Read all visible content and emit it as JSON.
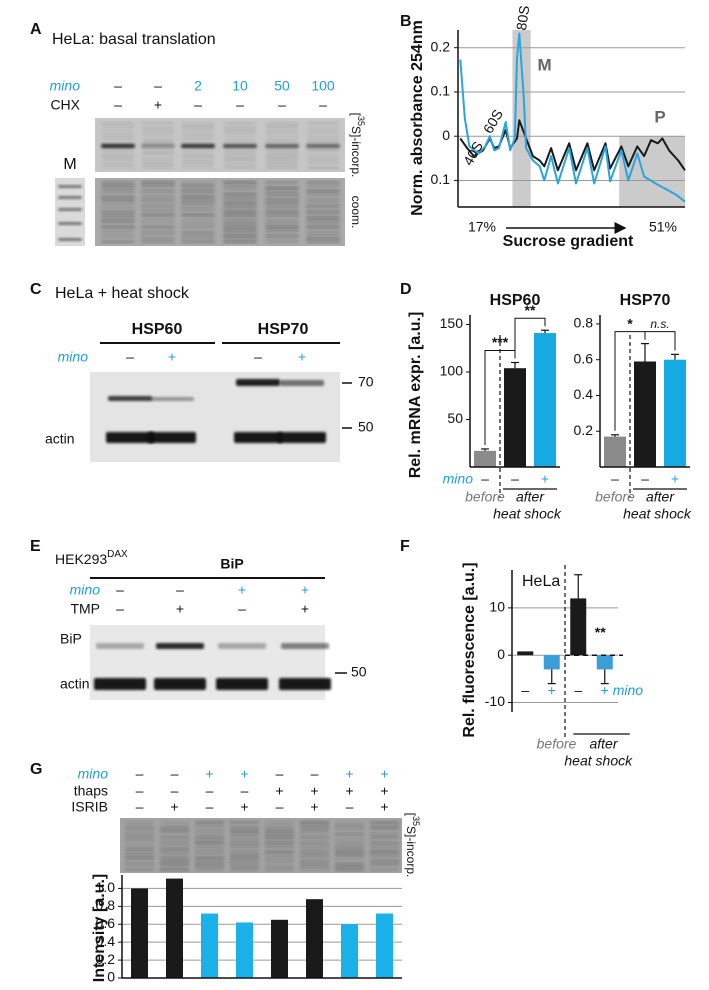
{
  "panels": {
    "A": {
      "label": "A",
      "title": "HeLa: basal translation",
      "rows": [
        {
          "name": "mino",
          "cells": [
            "–",
            "–",
            "2",
            "10",
            "50",
            "100"
          ]
        },
        {
          "name": "CHX",
          "cells": [
            "–",
            "+",
            "–",
            "–",
            "–",
            "–"
          ]
        }
      ],
      "incorp": [
        "[",
        "35",
        "S]-incorp."
      ],
      "stain": "coom.",
      "marker": "M"
    },
    "B": {
      "label": "B"
    },
    "C": {
      "label": "C",
      "title": "HeLa + heat shock",
      "headers": [
        "HSP60",
        "HSP70"
      ],
      "rows": [
        {
          "name": "mino",
          "cells": [
            "–",
            "+",
            "–",
            "+"
          ]
        }
      ],
      "size_markers": [
        "70",
        "50"
      ],
      "loading": "actin"
    },
    "D": {
      "label": "D"
    },
    "E": {
      "label": "E",
      "cell_line": [
        "HEK293",
        "DAX"
      ],
      "header": "BiP",
      "rows": [
        {
          "name": "mino",
          "cells": [
            "–",
            "–",
            "+",
            "+"
          ]
        },
        {
          "name": "TMP",
          "cells": [
            "–",
            "+",
            "–",
            "+"
          ]
        }
      ],
      "lanes": [
        "BiP",
        "actin"
      ],
      "size_marker": "50"
    },
    "F": {
      "label": "F"
    },
    "G": {
      "label": "G",
      "rows": [
        {
          "name": "mino",
          "cells": [
            "–",
            "–",
            "+",
            "+",
            "–",
            "–",
            "+",
            "+"
          ]
        },
        {
          "name": "thaps",
          "cells": [
            "–",
            "–",
            "–",
            "–",
            "+",
            "+",
            "+",
            "+"
          ]
        },
        {
          "name": "ISRIB",
          "cells": [
            "–",
            "+",
            "–",
            "+",
            "–",
            "+",
            "–",
            "+"
          ]
        }
      ],
      "incorp": [
        "[",
        "35",
        "S]-incorp."
      ]
    }
  },
  "chart_data": [
    {
      "type": "line",
      "y_label": "Norm. absorbance 254nm",
      "x_label": "Sucrose gradient",
      "xlim": [
        0,
        100
      ],
      "ylim": [
        -0.16,
        0.24
      ],
      "yticks": [
        0.2,
        0.1,
        0,
        {
          "value": -0.1,
          "label": "0.1"
        }
      ],
      "grid": true,
      "peak_labels": [
        "40S",
        "60S",
        "80S"
      ],
      "regions": [
        {
          "label": "M",
          "x": [
            24,
            32
          ]
        },
        {
          "label": "P",
          "x": [
            71,
            100
          ]
        }
      ],
      "gradient": [
        "17%",
        "51%"
      ],
      "series": [
        {
          "color": "#1a1a1a",
          "x": [
            1,
            4,
            7,
            11,
            14,
            16,
            18,
            21,
            23,
            26,
            27,
            30,
            33,
            36,
            38,
            41,
            44,
            49,
            52,
            57,
            60,
            65,
            67,
            72,
            75,
            79,
            82,
            85,
            88,
            90,
            93,
            97,
            100
          ],
          "values": [
            -0.005,
            -0.027,
            -0.045,
            -0.032,
            -0.005,
            -0.027,
            -0.023,
            0.014,
            -0.027,
            -0.005,
            0.036,
            -0.005,
            -0.045,
            -0.055,
            -0.068,
            -0.027,
            -0.077,
            -0.016,
            -0.077,
            -0.016,
            -0.077,
            -0.016,
            -0.073,
            -0.023,
            -0.068,
            -0.023,
            -0.045,
            -0.009,
            -0.016,
            -0.005,
            -0.032,
            -0.055,
            -0.077
          ]
        },
        {
          "color": "#2aa5dc",
          "x": [
            1,
            3,
            5,
            9,
            12,
            14,
            16,
            18,
            21,
            23,
            25,
            26,
            27,
            29,
            30,
            33,
            36,
            38,
            41,
            44,
            49,
            52,
            57,
            60,
            65,
            67,
            72,
            75,
            79,
            82,
            87,
            91,
            96,
            100
          ],
          "values": [
            0.173,
            0.041,
            -0.023,
            -0.039,
            -0.023,
            0,
            -0.032,
            -0.027,
            0.032,
            -0.032,
            -0.005,
            0.177,
            0.232,
            0.086,
            -0.027,
            -0.055,
            -0.068,
            -0.1,
            -0.045,
            -0.107,
            -0.027,
            -0.107,
            -0.027,
            -0.107,
            -0.023,
            -0.102,
            -0.032,
            -0.1,
            -0.039,
            -0.091,
            -0.107,
            -0.118,
            -0.132,
            -0.148
          ]
        }
      ]
    },
    {
      "type": "bar",
      "title": "HSP60",
      "y_label": "Rel. mRNA expr. [a.u.]",
      "x_row_label": "mino",
      "categories": [
        "–",
        "–",
        "+"
      ],
      "values": [
        17,
        104,
        141
      ],
      "errors": [
        2,
        6,
        3
      ],
      "colors": [
        "#8a8a8a",
        "#1a1a1a",
        "#17a9e1"
      ],
      "ylim": [
        0,
        160
      ],
      "yticks": [
        50,
        100,
        150
      ],
      "significance": [
        "***",
        "**"
      ],
      "groups": [
        "before",
        "after"
      ],
      "group_caption": "heat shock"
    },
    {
      "type": "bar",
      "title": "HSP70",
      "categories": [
        "–",
        "–",
        "+"
      ],
      "values": [
        0.17,
        0.59,
        0.6
      ],
      "errors": [
        0.01,
        0.1,
        0.03
      ],
      "colors": [
        "#8a8a8a",
        "#1a1a1a",
        "#17a9e1"
      ],
      "ylim": [
        0,
        0.85
      ],
      "yticks": [
        0.2,
        0.4,
        0.6,
        0.8
      ],
      "significance": [
        "*",
        "n.s."
      ],
      "groups": [
        "before",
        "after"
      ],
      "group_caption": "heat shock"
    },
    {
      "type": "bar",
      "title": "HeLa",
      "y_label": "Rel. fluorescence [a.u.]",
      "x_row_label": "mino",
      "categories": [
        "–",
        "+",
        "–",
        "+"
      ],
      "values": [
        0.8,
        -3,
        12,
        -3
      ],
      "errors": [
        null,
        3,
        5,
        3
      ],
      "colors": [
        "#1a1a1a",
        "#3a9fd8",
        "#1a1a1a",
        "#3a9fd8"
      ],
      "ylim": [
        -12,
        18
      ],
      "yticks": [
        10,
        0,
        -10
      ],
      "grid": true,
      "significance": [
        "**"
      ],
      "groups": [
        "before",
        "after"
      ],
      "group_caption": "heat shock"
    },
    {
      "type": "bar",
      "y_label": "Intensity [a.u.]",
      "values": [
        1.0,
        1.11,
        0.72,
        0.62,
        0.65,
        0.88,
        0.6,
        0.72
      ],
      "colors": [
        "#1a1a1a",
        "#1a1a1a",
        "#1ab0e8",
        "#1ab0e8",
        "#1a1a1a",
        "#1a1a1a",
        "#1ab0e8",
        "#1ab0e8"
      ],
      "ylim": [
        0,
        1.15
      ],
      "yticks": [
        0,
        0.2,
        0.4,
        0.6,
        0.8,
        {
          "value": 1,
          "label": "1.0"
        }
      ],
      "grid": true
    }
  ]
}
